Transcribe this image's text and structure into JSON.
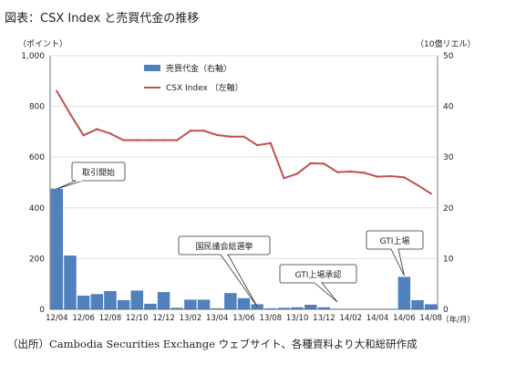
{
  "title": "図表：CSX Index と売買代金の推移",
  "source": "（出所）Cambodia Securities Exchange ウェブサイト、各種資料より大和総研作成",
  "chart_data": {
    "type": "bar+line",
    "left_axis_unit": "（ポイント）",
    "right_axis_unit": "（10億リエル）",
    "x_axis_unit": "（年/月）",
    "left_ylim": [
      0,
      1000
    ],
    "left_ticks": [
      "0",
      "200",
      "400",
      "600",
      "800",
      "1,000"
    ],
    "right_ylim": [
      0,
      50
    ],
    "right_ticks": [
      "0",
      "10",
      "20",
      "30",
      "40",
      "50"
    ],
    "x_tick_labels": [
      "12/04",
      "12/06",
      "12/08",
      "12/10",
      "12/12",
      "13/02",
      "13/04",
      "13/06",
      "13/08",
      "13/10",
      "13/12",
      "14/02",
      "14/04",
      "14/06",
      "14/08"
    ],
    "categories": [
      "12/04",
      "12/05",
      "12/06",
      "12/07",
      "12/08",
      "12/09",
      "12/10",
      "12/11",
      "12/12",
      "13/01",
      "13/02",
      "13/03",
      "13/04",
      "13/05",
      "13/06",
      "13/07",
      "13/08",
      "13/09",
      "13/10",
      "13/11",
      "13/12",
      "14/01",
      "14/02",
      "14/03",
      "14/04",
      "14/05",
      "14/06",
      "14/07",
      "14/08"
    ],
    "series": [
      {
        "name": "売買代金（右軸）",
        "kind": "bar",
        "axis": "right",
        "color": "#4f81bd",
        "values": [
          23.8,
          10.6,
          2.7,
          3.0,
          3.6,
          1.8,
          3.7,
          1.1,
          3.4,
          0.3,
          1.9,
          1.9,
          0.2,
          3.2,
          2.2,
          1.0,
          0.2,
          0.3,
          0.4,
          0.9,
          0.4,
          0.1,
          0.1,
          0.1,
          0.1,
          0.1,
          6.4,
          1.8,
          1.0
        ]
      },
      {
        "name": "CSX Index （左軸）",
        "kind": "line",
        "axis": "left",
        "color": "#c0504d",
        "values": [
          860,
          770,
          686,
          710,
          693,
          667,
          667,
          667,
          667,
          667,
          704,
          704,
          687,
          681,
          681,
          647,
          655,
          517,
          535,
          576,
          574,
          541,
          543,
          538,
          523,
          525,
          520,
          490,
          456
        ]
      }
    ],
    "annotations": [
      {
        "text": "取引開始",
        "category": "12/04"
      },
      {
        "text": "国民議会総選挙",
        "category": "13/07"
      },
      {
        "text": "GTI上場承認",
        "category": "14/01"
      },
      {
        "text": "GTI上場",
        "category": "14/06"
      }
    ],
    "grid": "horizontal",
    "legend_position": "top-left"
  }
}
